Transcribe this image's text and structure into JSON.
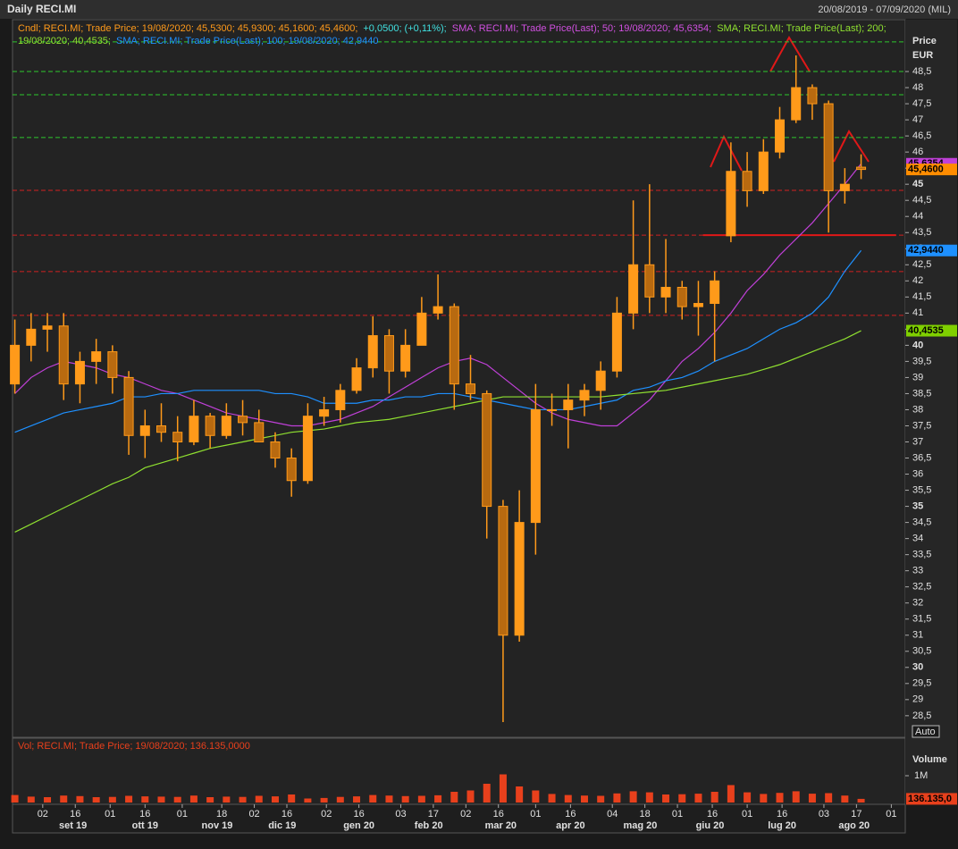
{
  "header": {
    "title": "Daily RECI.MI",
    "range": "20/08/2019 - 07/09/2020 (MIL)"
  },
  "chart_data": {
    "type": "candlestick",
    "color": "#ff9a1a",
    "xlim": [
      "2019-08-20",
      "2020-09-07"
    ],
    "x": [
      "2019-08-21",
      "2019-08-28",
      "2019-09-04",
      "2019-09-11",
      "2019-09-18",
      "2019-09-25",
      "2019-10-02",
      "2019-10-09",
      "2019-10-16",
      "2019-10-23",
      "2019-10-30",
      "2019-11-06",
      "2019-11-13",
      "2019-11-20",
      "2019-11-27",
      "2019-12-04",
      "2019-12-11",
      "2019-12-18",
      "2019-12-25",
      "2020-01-01",
      "2020-01-08",
      "2020-01-15",
      "2020-01-22",
      "2020-01-29",
      "2020-02-05",
      "2020-02-12",
      "2020-02-19",
      "2020-02-26",
      "2020-03-04",
      "2020-03-11",
      "2020-03-18",
      "2020-03-25",
      "2020-04-01",
      "2020-04-08",
      "2020-04-15",
      "2020-04-22",
      "2020-04-29",
      "2020-05-06",
      "2020-05-13",
      "2020-05-20",
      "2020-05-27",
      "2020-06-03",
      "2020-06-10",
      "2020-06-17",
      "2020-06-24",
      "2020-07-01",
      "2020-07-08",
      "2020-07-15",
      "2020-07-22",
      "2020-07-29",
      "2020-08-05",
      "2020-08-12",
      "2020-08-19"
    ],
    "open": [
      38.8,
      40.0,
      40.5,
      40.6,
      38.8,
      39.5,
      39.8,
      39.0,
      37.2,
      37.5,
      37.3,
      37.0,
      37.8,
      37.2,
      37.8,
      37.6,
      37.0,
      36.5,
      35.8,
      37.8,
      38.0,
      38.6,
      39.3,
      40.3,
      39.2,
      40.0,
      41.0,
      41.2,
      38.8,
      38.5,
      35.0,
      31.0,
      34.5,
      38.0,
      38.0,
      38.3,
      38.6,
      39.2,
      41.0,
      42.5,
      41.5,
      41.8,
      41.2,
      41.3,
      43.4,
      45.4,
      44.8,
      46.0,
      47.0,
      48.0,
      47.5,
      44.8,
      45.53
    ],
    "high": [
      40.8,
      41.0,
      41.0,
      41.0,
      39.8,
      40.2,
      40.0,
      39.2,
      38.0,
      38.2,
      37.8,
      38.3,
      37.9,
      38.2,
      38.3,
      38.0,
      37.3,
      36.8,
      38.2,
      38.4,
      38.8,
      39.6,
      40.9,
      40.5,
      40.5,
      41.5,
      42.2,
      41.3,
      39.7,
      38.6,
      35.2,
      35.5,
      38.8,
      38.5,
      38.8,
      38.8,
      39.5,
      41.5,
      44.5,
      45.0,
      43.3,
      42.0,
      42.0,
      42.3,
      46.3,
      46.0,
      46.4,
      47.4,
      49.0,
      48.1,
      47.6,
      45.5,
      45.93
    ],
    "low": [
      38.5,
      39.5,
      39.8,
      38.3,
      38.2,
      38.8,
      38.5,
      36.6,
      36.5,
      37.0,
      36.4,
      36.9,
      36.8,
      37.1,
      37.2,
      37.0,
      36.2,
      35.3,
      35.7,
      37.5,
      37.6,
      38.5,
      39.0,
      38.5,
      39.0,
      40.0,
      40.8,
      38.0,
      38.3,
      34.0,
      28.3,
      30.8,
      33.5,
      37.5,
      36.8,
      37.8,
      38.0,
      39.0,
      40.5,
      41.0,
      41.0,
      40.8,
      40.3,
      39.5,
      43.2,
      44.3,
      44.7,
      45.8,
      46.9,
      47.0,
      43.5,
      44.4,
      45.16
    ],
    "close": [
      40.0,
      40.5,
      40.6,
      38.8,
      39.5,
      39.8,
      39.0,
      37.2,
      37.5,
      37.3,
      37.0,
      37.8,
      37.2,
      37.8,
      37.6,
      37.0,
      36.5,
      35.8,
      37.8,
      38.0,
      38.6,
      39.3,
      40.3,
      39.2,
      40.0,
      41.0,
      41.2,
      38.8,
      38.5,
      35.0,
      31.0,
      34.5,
      38.0,
      38.0,
      38.3,
      38.6,
      39.2,
      41.0,
      42.5,
      41.5,
      41.8,
      41.2,
      41.3,
      42.0,
      45.4,
      44.8,
      46.0,
      47.0,
      48.0,
      47.5,
      44.8,
      45.0,
      45.46
    ],
    "overlays": [
      {
        "color": "#c040d8",
        "values": [
          38.5,
          39.0,
          39.3,
          39.5,
          39.4,
          39.3,
          39.1,
          39.0,
          38.8,
          38.6,
          38.5,
          38.3,
          38.1,
          37.9,
          37.8,
          37.7,
          37.6,
          37.5,
          37.5,
          37.6,
          37.7,
          37.9,
          38.1,
          38.4,
          38.7,
          39.0,
          39.3,
          39.5,
          39.6,
          39.4,
          39.0,
          38.6,
          38.2,
          37.9,
          37.7,
          37.6,
          37.5,
          37.5,
          37.9,
          38.3,
          38.9,
          39.5,
          39.9,
          40.4,
          41.0,
          41.7,
          42.2,
          42.8,
          43.3,
          43.8,
          44.4,
          45.0,
          45.6354
        ]
      },
      {
        "color": "#1e90ff",
        "values": [
          37.3,
          37.5,
          37.7,
          37.9,
          38.0,
          38.1,
          38.2,
          38.4,
          38.4,
          38.5,
          38.5,
          38.6,
          38.6,
          38.6,
          38.6,
          38.6,
          38.5,
          38.5,
          38.4,
          38.2,
          38.2,
          38.2,
          38.3,
          38.3,
          38.4,
          38.4,
          38.5,
          38.5,
          38.4,
          38.3,
          38.2,
          38.1,
          38.0,
          38.0,
          38.0,
          38.1,
          38.2,
          38.3,
          38.6,
          38.7,
          38.9,
          39.0,
          39.2,
          39.5,
          39.7,
          39.9,
          40.2,
          40.5,
          40.7,
          41.0,
          41.5,
          42.3,
          42.944
        ]
      },
      {
        "color": "#8fe030",
        "values": [
          34.2,
          34.45,
          34.7,
          34.95,
          35.2,
          35.45,
          35.7,
          35.9,
          36.2,
          36.35,
          36.5,
          36.65,
          36.8,
          36.9,
          37.0,
          37.1,
          37.2,
          37.3,
          37.35,
          37.4,
          37.5,
          37.6,
          37.65,
          37.7,
          37.8,
          37.9,
          38.0,
          38.1,
          38.2,
          38.3,
          38.4,
          38.4,
          38.4,
          38.4,
          38.4,
          38.4,
          38.4,
          38.45,
          38.5,
          38.55,
          38.6,
          38.7,
          38.8,
          38.9,
          39.0,
          39.1,
          39.25,
          39.4,
          39.6,
          39.8,
          40.0,
          40.2,
          40.4535
        ]
      }
    ],
    "legend": [
      [
        {
          "text": "Cndl; RECI.MI; Trade Price;  19/08/2020;  45,5300;  45,9300;  45,1600;  45,4600;",
          "color": "#ff9a1a"
        },
        {
          "text": "+0,0500;  (+0,11%);",
          "color": "#40e0e0"
        },
        {
          "text": "SMA; RECI.MI; Trade Price(Last);  50;  19/08/2020;  45,6354;",
          "color": "#d050e0"
        },
        {
          "text": "SMA; RECI.MI; Trade Price(Last);  200;",
          "color": "#8fe030"
        }
      ],
      [
        {
          "text": "19/08/2020;  40,4535;",
          "color": "#8fe030"
        },
        {
          "text": "SMA; RECI.MI; Trade Price(Last);  100;  19/08/2020;  42,9440",
          "color": "#1e90ff"
        }
      ]
    ],
    "levels": [
      {
        "value": 49.42,
        "color": "#2ec82e"
      },
      {
        "value": 48.5,
        "color": "#2ec82e"
      },
      {
        "value": 47.78,
        "color": "#2ec82e"
      },
      {
        "value": 46.45,
        "color": "#2ec82e"
      },
      {
        "value": 44.81,
        "color": "#d02020"
      },
      {
        "value": 43.42,
        "color": "#d02020"
      },
      {
        "value": 42.29,
        "color": "#d02020"
      },
      {
        "value": 40.93,
        "color": "#d02020"
      }
    ],
    "support": {
      "value": 43.42,
      "from": "2020-06-12",
      "to": "2020-09-03",
      "color": "#e01818"
    },
    "ylim": [
      27.83,
      50.11
    ],
    "yaxis": {
      "title": "Price",
      "unit": "EUR",
      "mode": "Auto"
    },
    "yticks": [
      {
        "value": 28.5,
        "label": "28,5"
      },
      29,
      {
        "value": 29.5,
        "label": "29,5"
      },
      30,
      {
        "value": 30.5,
        "label": "30,5"
      },
      31,
      {
        "value": 31.5,
        "label": "31,5"
      },
      32,
      {
        "value": 32.5,
        "label": "32,5"
      },
      33,
      {
        "value": 33.5,
        "label": "33,5"
      },
      34,
      {
        "value": 34.5,
        "label": "34,5"
      },
      35,
      {
        "value": 35.5,
        "label": "35,5"
      },
      36,
      {
        "value": 36.5,
        "label": "36,5"
      },
      37,
      {
        "value": 37.5,
        "label": "37,5"
      },
      38,
      {
        "value": 38.5,
        "label": "38,5"
      },
      39,
      {
        "value": 39.5,
        "label": "39,5"
      },
      40,
      {
        "value": 40.5,
        "label": "40,5"
      },
      41,
      {
        "value": 41.5,
        "label": "41,5"
      },
      42,
      {
        "value": 42.5,
        "label": "42,5"
      },
      43,
      {
        "value": 43.5,
        "label": "43,5"
      },
      44,
      {
        "value": 44.5,
        "label": "44,5"
      },
      45,
      {
        "value": 45.5,
        "label": "45,5"
      },
      46,
      {
        "value": 46.5,
        "label": "46,5"
      },
      47,
      {
        "value": 47.5,
        "label": "47,5"
      },
      48,
      {
        "value": 48.5,
        "label": "48,5"
      }
    ],
    "price_tags": [
      {
        "value": 45.6354,
        "label": "45,6354",
        "color": "#c040d8"
      },
      {
        "value": 45.46,
        "label": "45,4600",
        "color": "#ff8c00"
      },
      {
        "value": 42.944,
        "label": "42,9440",
        "color": "#1e90ff"
      },
      {
        "value": 40.4535,
        "label": "40,4535",
        "color": "#7fd000"
      }
    ],
    "volume": {
      "title": "Vol; RECI.MI; Trade Price;  19/08/2020;  136.135,0000",
      "axis_title": "Volume",
      "color": "#e8401c",
      "values": [
        280000,
        220000,
        200000,
        260000,
        240000,
        200000,
        210000,
        250000,
        230000,
        220000,
        210000,
        260000,
        200000,
        220000,
        210000,
        250000,
        230000,
        300000,
        150000,
        170000,
        210000,
        230000,
        280000,
        260000,
        240000,
        250000,
        270000,
        400000,
        450000,
        700000,
        1050000,
        600000,
        450000,
        320000,
        280000,
        260000,
        250000,
        340000,
        420000,
        380000,
        300000,
        310000,
        330000,
        400000,
        650000,
        380000,
        320000,
        360000,
        420000,
        330000,
        350000,
        260000,
        136135
      ],
      "ylim": [
        0,
        2400000
      ],
      "yticks": [
        {
          "value": 1000000,
          "label": "1M"
        }
      ],
      "last_tag": {
        "value": 136135,
        "label": "136.135,0"
      }
    },
    "xticks": [
      {
        "value": "2019-09-02",
        "label": "02"
      },
      {
        "value": "2019-09-16",
        "label": "16"
      },
      {
        "value": "2019-10-01",
        "label": "01"
      },
      {
        "value": "2019-10-16",
        "label": "16"
      },
      {
        "value": "2019-11-01",
        "label": "01"
      },
      {
        "value": "2019-11-18",
        "label": "18"
      },
      {
        "value": "2019-12-02",
        "label": "02"
      },
      {
        "value": "2019-12-16",
        "label": "16"
      },
      {
        "value": "2020-01-02",
        "label": "02"
      },
      {
        "value": "2020-01-16",
        "label": "16"
      },
      {
        "value": "2020-02-03",
        "label": "03"
      },
      {
        "value": "2020-02-17",
        "label": "17"
      },
      {
        "value": "2020-03-02",
        "label": "02"
      },
      {
        "value": "2020-03-16",
        "label": "16"
      },
      {
        "value": "2020-04-01",
        "label": "01"
      },
      {
        "value": "2020-04-16",
        "label": "16"
      },
      {
        "value": "2020-05-04",
        "label": "04"
      },
      {
        "value": "2020-05-18",
        "label": "18"
      },
      {
        "value": "2020-06-01",
        "label": "01"
      },
      {
        "value": "2020-06-16",
        "label": "16"
      },
      {
        "value": "2020-07-01",
        "label": "01"
      },
      {
        "value": "2020-07-16",
        "label": "16"
      },
      {
        "value": "2020-08-03",
        "label": "03"
      },
      {
        "value": "2020-08-17",
        "label": "17"
      },
      {
        "value": "2020-09-01",
        "label": "01"
      }
    ],
    "months": [
      {
        "value": "2019-09-15",
        "label": "set 19"
      },
      {
        "value": "2019-10-16",
        "label": "ott 19"
      },
      {
        "value": "2019-11-16",
        "label": "nov 19"
      },
      {
        "value": "2019-12-14",
        "label": "dic 19"
      },
      {
        "value": "2020-01-16",
        "label": "gen 20"
      },
      {
        "value": "2020-02-15",
        "label": "feb 20"
      },
      {
        "value": "2020-03-17",
        "label": "mar 20"
      },
      {
        "value": "2020-04-16",
        "label": "apr 20"
      },
      {
        "value": "2020-05-16",
        "label": "mag 20"
      },
      {
        "value": "2020-06-15",
        "label": "giu 20"
      },
      {
        "value": "2020-07-16",
        "label": "lug 20"
      },
      {
        "value": "2020-08-16",
        "label": "ago 20"
      }
    ]
  }
}
